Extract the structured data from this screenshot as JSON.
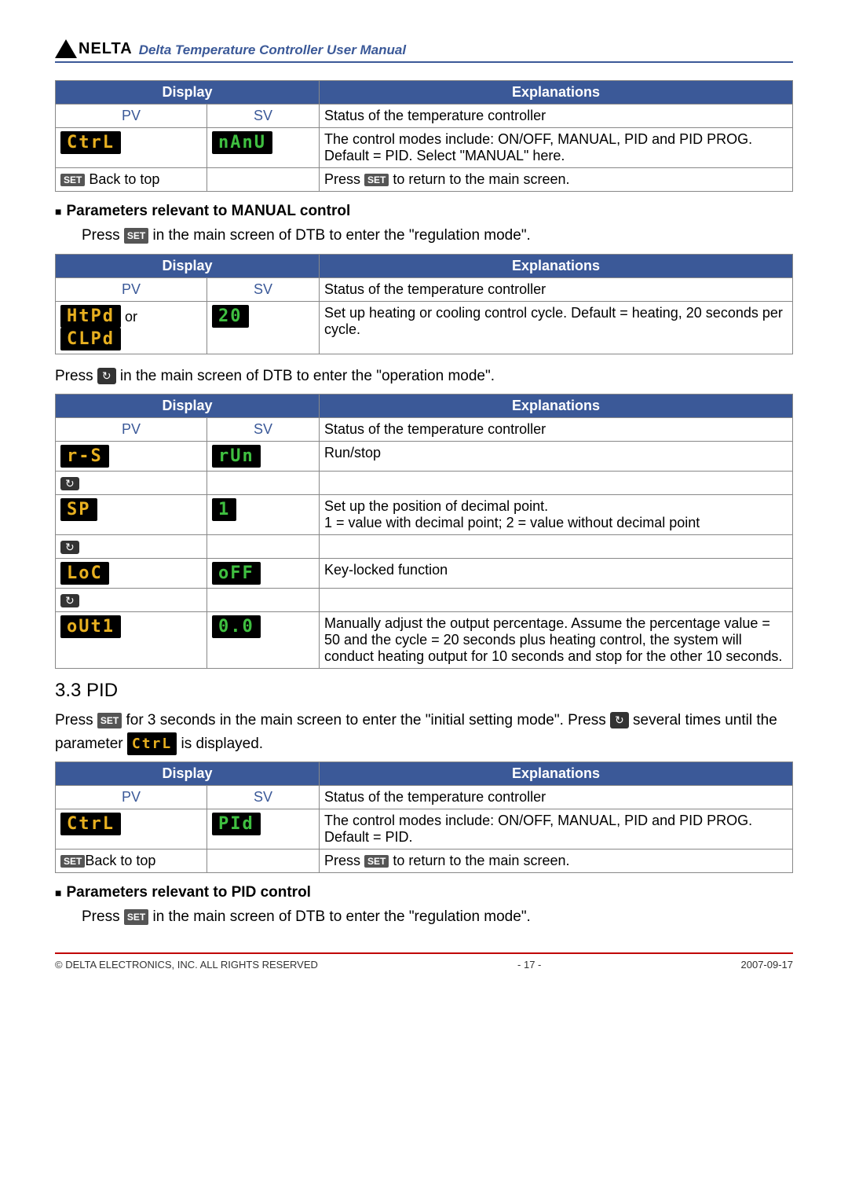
{
  "header": {
    "logo_text": "NELTA",
    "title": "Delta Temperature Controller User Manual"
  },
  "icons": {
    "set": "SET",
    "loop": "↻"
  },
  "table1": {
    "col_display": "Display",
    "col_expl": "Explanations",
    "pv": "PV",
    "sv": "SV",
    "status_row": "Status of the temperature controller",
    "pv_disp": "CtrL",
    "sv_disp": "nAnU",
    "expl_row": "The control modes include: ON/OFF, MANUAL, PID and PID PROG. Default = PID. Select \"MANUAL\" here.",
    "back_to_top_prefix": " Back to top",
    "press_text_a": "Press ",
    "press_text_b": " to return to the main screen."
  },
  "section_manual": {
    "title": "Parameters relevant to MANUAL control",
    "press_a": "Press ",
    "press_b": " in the main screen of DTB to enter the \"regulation mode\"."
  },
  "table2": {
    "col_display": "Display",
    "col_expl": "Explanations",
    "pv": "PV",
    "sv": "SV",
    "status_row": "Status of the temperature controller",
    "pv_disp1": "HtPd",
    "pv_or": " or",
    "pv_disp2": "CLPd",
    "sv_disp": "20",
    "expl_row": "Set up heating or cooling control cycle. Default = heating, 20 seconds per cycle."
  },
  "between1": {
    "press_a": "Press ",
    "press_b": " in the main screen of DTB to enter the \"operation mode\"."
  },
  "table3": {
    "col_display": "Display",
    "col_expl": "Explanations",
    "pv": "PV",
    "sv": "SV",
    "status_row": "Status of the temperature controller",
    "r1_pv": "r-S",
    "r1_sv": "rUn",
    "r1_expl": "Run/stop",
    "r2_pv": "SP",
    "r2_sv": "1",
    "r2_expl_a": "Set up the position of decimal point.",
    "r2_expl_b": "1 = value with decimal point; 2 = value without decimal point",
    "r3_pv": "LoC",
    "r3_sv": "oFF",
    "r3_expl": "Key-locked function",
    "r4_pv": "oUt1",
    "r4_sv": "0.0",
    "r4_expl": "Manually adjust the output percentage. Assume the percentage value = 50 and the cycle = 20 seconds plus heating control, the system will conduct heating output for 10 seconds and stop for the other 10 seconds."
  },
  "section_pid_header": "3.3 PID",
  "pid_intro": {
    "a": "Press ",
    "b": " for 3 seconds in the main screen to enter the \"initial setting mode\". Press ",
    "c": " several times until the parameter ",
    "d": " is displayed.",
    "param_disp": "CtrL"
  },
  "table4": {
    "col_display": "Display",
    "col_expl": "Explanations",
    "pv": "PV",
    "sv": "SV",
    "status_row": "Status of the temperature controller",
    "pv_disp": "CtrL",
    "sv_disp": "PId",
    "expl_row": "The control modes include: ON/OFF, MANUAL, PID and PID PROG. Default = PID.",
    "back_to_top_prefix": "Back to top",
    "press_text_a": "Press ",
    "press_text_b": " to return to the main screen."
  },
  "section_pid_ctrl": {
    "title": "Parameters relevant to PID control",
    "press_a": "Press ",
    "press_b": " in the main screen of DTB to enter the \"regulation mode\"."
  },
  "footer": {
    "left": "© DELTA ELECTRONICS, INC. ALL RIGHTS RESERVED",
    "center": "- 17 -",
    "right": "2007-09-17"
  }
}
